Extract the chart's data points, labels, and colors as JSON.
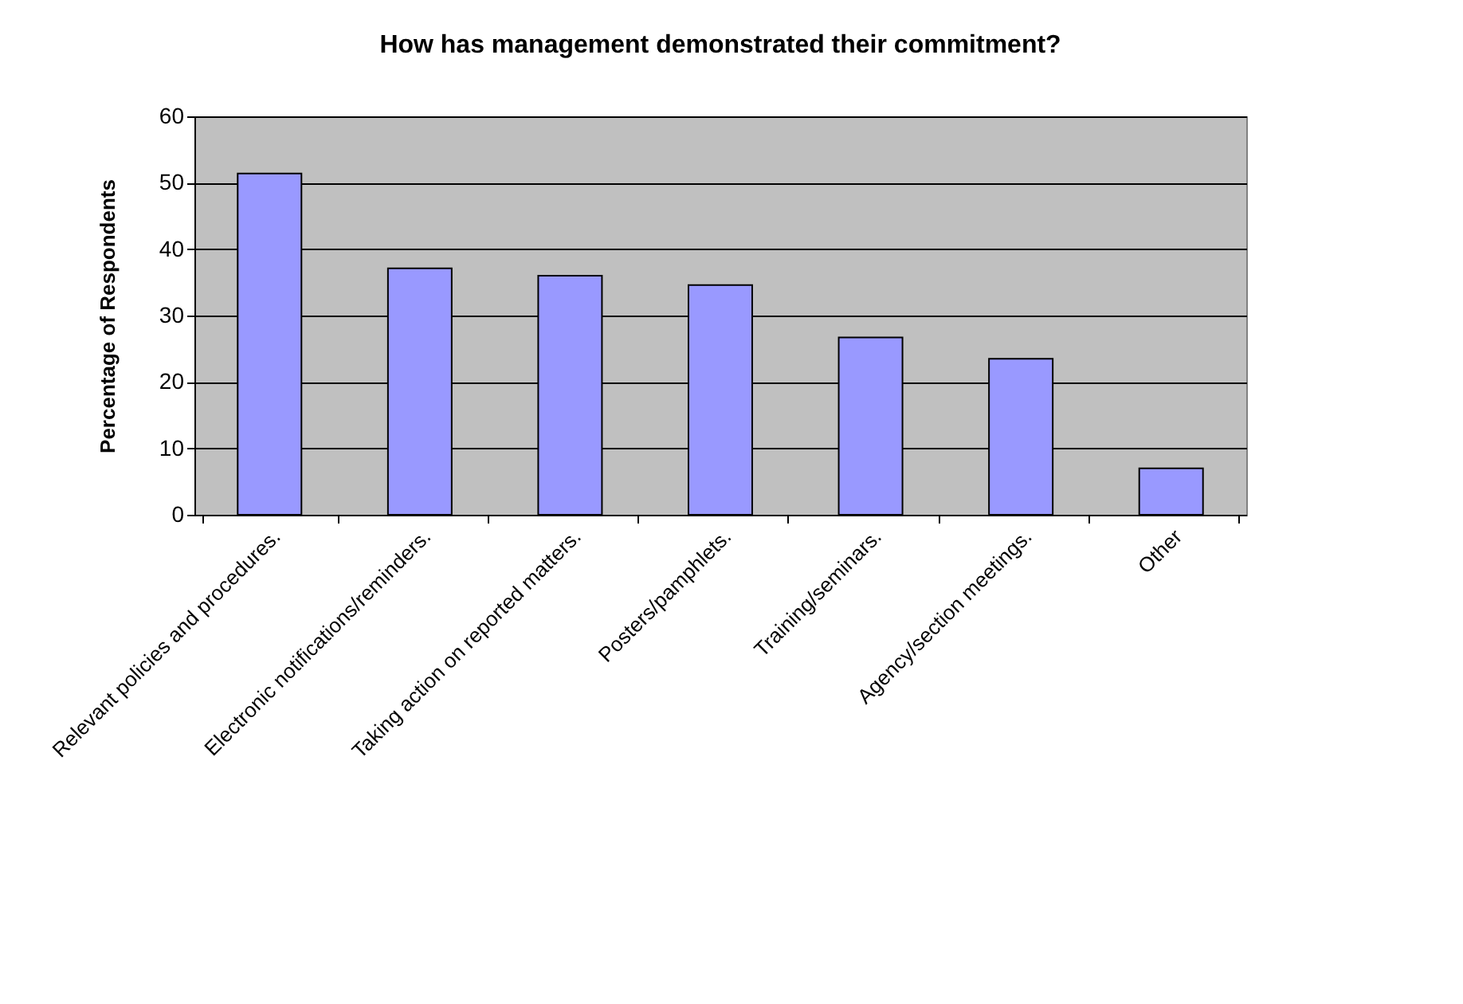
{
  "chart_data": {
    "type": "bar",
    "title": "How has management demonstrated their commitment?",
    "ylabel": "Percentage of Respondents",
    "categories": [
      "Relevant policies and procedures.",
      "Electronic notifications/reminders.",
      "Taking action on reported matters.",
      "Posters/pamphlets.",
      "Training/seminars.",
      "Agency/section meetings.",
      "Other"
    ],
    "values": [
      51.4,
      37.1,
      36.0,
      34.6,
      26.7,
      23.5,
      7.0
    ],
    "color": "#9999ff",
    "ylim": [
      0,
      60
    ],
    "yticks": [
      0,
      10,
      20,
      30,
      40,
      50,
      60
    ],
    "grid": "y"
  }
}
